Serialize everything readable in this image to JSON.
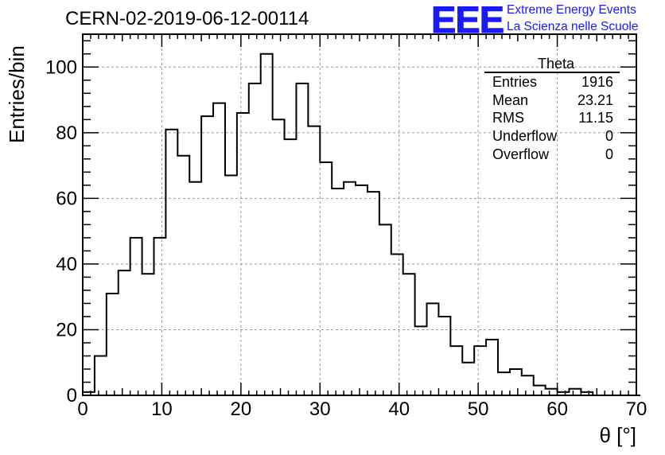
{
  "title": "CERN-02-2019-06-12-00114",
  "logo": {
    "text": "EEE",
    "line1": "Extreme Energy Events",
    "line2": "La Scienza nelle Scuole",
    "color": "#1a1aff"
  },
  "stats": {
    "name": "Theta",
    "rows": [
      {
        "label": "Entries",
        "value": "1916"
      },
      {
        "label": "Mean",
        "value": "23.21"
      },
      {
        "label": "RMS",
        "value": "11.15"
      },
      {
        "label": "Underflow",
        "value": "0"
      },
      {
        "label": "Overflow",
        "value": "0"
      }
    ]
  },
  "chart_data": {
    "type": "histogram",
    "title": "CERN-02-2019-06-12-00114",
    "xlabel": "θ [°]",
    "ylabel": "Entries/bin",
    "xlim": [
      0,
      70
    ],
    "ylim": [
      0,
      110
    ],
    "grid": true,
    "x_ticks": [
      0,
      10,
      20,
      30,
      40,
      50,
      60,
      70
    ],
    "y_ticks": [
      0,
      20,
      40,
      60,
      80,
      100
    ],
    "bin_width": 1.5,
    "bin_edges_start": 0,
    "values": [
      1,
      12,
      31,
      38,
      48,
      37,
      48,
      81,
      73,
      65,
      85,
      89,
      67,
      86,
      95,
      104,
      84,
      78,
      95,
      82,
      71,
      63,
      65,
      64,
      62,
      52,
      43,
      37,
      21,
      28,
      24,
      15,
      10,
      15,
      17,
      7,
      8,
      6,
      3,
      2,
      1,
      2,
      1,
      0,
      0,
      0,
      0
    ]
  }
}
